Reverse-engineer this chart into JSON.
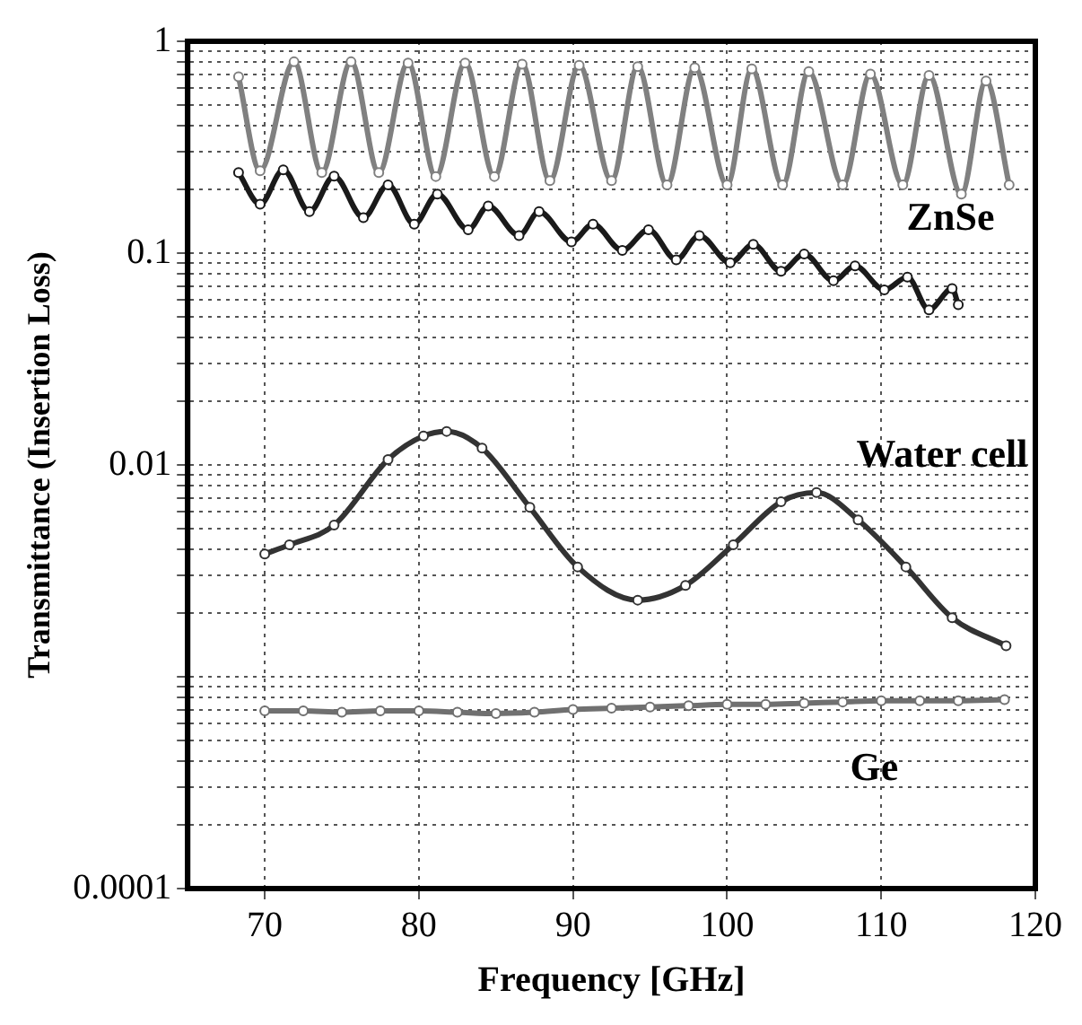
{
  "chart_data": {
    "type": "line",
    "xlabel": "Frequency [GHz]",
    "ylabel": "Transmittance (Insertion Loss)",
    "log": "y",
    "grid": true,
    "marker": "circle",
    "line_style": "solid",
    "legend": false,
    "xlim": [
      65,
      120
    ],
    "xticks": [
      70,
      80,
      90,
      100,
      110,
      120
    ],
    "ylim": [
      0.0001,
      1
    ],
    "yticks": [
      0.0001,
      {
        "value": 0.0002,
        "label": null
      },
      {
        "value": 0.0003,
        "label": null
      },
      {
        "value": 0.0004,
        "label": null
      },
      {
        "value": 0.0005,
        "label": null
      },
      {
        "value": 0.0006,
        "label": null
      },
      {
        "value": 0.0007,
        "label": null
      },
      {
        "value": 0.0008,
        "label": null
      },
      {
        "value": 0.0009,
        "label": null
      },
      {
        "value": 0.001,
        "label": null
      },
      {
        "value": 0.002,
        "label": null
      },
      {
        "value": 0.003,
        "label": null
      },
      {
        "value": 0.004,
        "label": null
      },
      {
        "value": 0.005,
        "label": null
      },
      {
        "value": 0.006,
        "label": null
      },
      {
        "value": 0.007,
        "label": null
      },
      {
        "value": 0.008,
        "label": null
      },
      {
        "value": 0.009,
        "label": null
      },
      0.01,
      {
        "value": 0.02,
        "label": null
      },
      {
        "value": 0.03,
        "label": null
      },
      {
        "value": 0.04,
        "label": null
      },
      {
        "value": 0.05,
        "label": null
      },
      {
        "value": 0.06,
        "label": null
      },
      {
        "value": 0.07,
        "label": null
      },
      {
        "value": 0.08,
        "label": null
      },
      {
        "value": 0.09,
        "label": null
      },
      0.1,
      {
        "value": 0.2,
        "label": null
      },
      {
        "value": 0.3,
        "label": null
      },
      {
        "value": 0.4,
        "label": null
      },
      {
        "value": 0.5,
        "label": null
      },
      {
        "value": 0.6,
        "label": null
      },
      {
        "value": 0.7,
        "label": null
      },
      {
        "value": 0.8,
        "label": null
      },
      {
        "value": 0.9,
        "label": null
      },
      1
    ],
    "series": [
      {
        "name": "ZnSe",
        "color": "#808080",
        "x": [
          68.3,
          69.7,
          71.9,
          73.7,
          75.6,
          77.4,
          79.3,
          81.1,
          83.0,
          84.9,
          86.7,
          88.5,
          90.4,
          92.5,
          94.2,
          96.1,
          97.9,
          100.0,
          101.6,
          103.6,
          105.3,
          107.5,
          109.3,
          111.4,
          113.1,
          115.2,
          116.8,
          118.3
        ],
        "values": [
          0.68,
          0.245,
          0.8,
          0.24,
          0.8,
          0.24,
          0.79,
          0.23,
          0.79,
          0.23,
          0.78,
          0.22,
          0.77,
          0.22,
          0.76,
          0.21,
          0.75,
          0.21,
          0.74,
          0.21,
          0.72,
          0.21,
          0.7,
          0.21,
          0.69,
          0.19,
          0.65,
          0.21
        ]
      },
      {
        "color": "#1a1a1a",
        "x": [
          68.3,
          69.7,
          71.2,
          72.9,
          74.5,
          76.4,
          78.0,
          79.7,
          81.2,
          83.2,
          84.5,
          86.5,
          87.8,
          89.9,
          91.3,
          93.2,
          94.9,
          96.7,
          98.2,
          100.2,
          101.7,
          103.5,
          105.0,
          106.9,
          108.3,
          110.2,
          111.7,
          113.1,
          114.6,
          115.0
        ],
        "values": [
          0.24,
          0.17,
          0.247,
          0.157,
          0.231,
          0.147,
          0.21,
          0.137,
          0.19,
          0.129,
          0.167,
          0.121,
          0.157,
          0.113,
          0.137,
          0.103,
          0.129,
          0.093,
          0.121,
          0.09,
          0.11,
          0.082,
          0.099,
          0.074,
          0.087,
          0.067,
          0.077,
          0.054,
          0.068,
          0.057
        ]
      },
      {
        "name": "Water cell",
        "color": "#333333",
        "x": [
          70.0,
          71.6,
          74.5,
          78.0,
          80.3,
          81.8,
          84.1,
          87.2,
          90.3,
          94.2,
          97.3,
          100.4,
          103.5,
          105.8,
          108.5,
          111.6,
          114.6,
          118.1
        ],
        "values": [
          0.0038,
          0.0042,
          0.0052,
          0.0106,
          0.0137,
          0.0144,
          0.012,
          0.0063,
          0.0033,
          0.0023,
          0.0027,
          0.0042,
          0.0067,
          0.0074,
          0.0055,
          0.0033,
          0.0019,
          0.0014
        ]
      },
      {
        "name": "Ge",
        "color": "#707070",
        "x": [
          70,
          72.5,
          75,
          77.5,
          80,
          82.5,
          85,
          87.5,
          90,
          92.5,
          95,
          97.5,
          100,
          102.5,
          105,
          107.5,
          110,
          112.5,
          115,
          118
        ],
        "values": [
          0.00069,
          0.00069,
          0.00068,
          0.00069,
          0.00069,
          0.00068,
          0.00067,
          0.00068,
          0.0007,
          0.00071,
          0.00072,
          0.00073,
          0.00074,
          0.00074,
          0.00075,
          0.00076,
          0.00077,
          0.00077,
          0.00077,
          0.00078
        ]
      }
    ]
  }
}
